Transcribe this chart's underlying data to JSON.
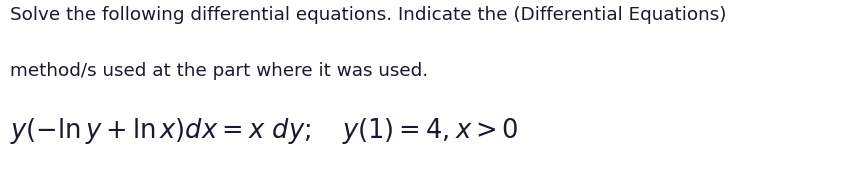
{
  "background_color": "#ffffff",
  "text_line1": "Solve the following differential equations. Indicate the (Differential Equations)",
  "text_line2": "method/s used at the part where it was used.",
  "text_color": "#1a1a2e",
  "math_expr": "$y(-\\ln y + \\ln x)dx = x\\ dy;\\quad y(1) = 4, x > 0$",
  "text_fontsize": 13.2,
  "math_fontsize": 18.5,
  "fig_width": 8.42,
  "fig_height": 1.94,
  "dpi": 100
}
